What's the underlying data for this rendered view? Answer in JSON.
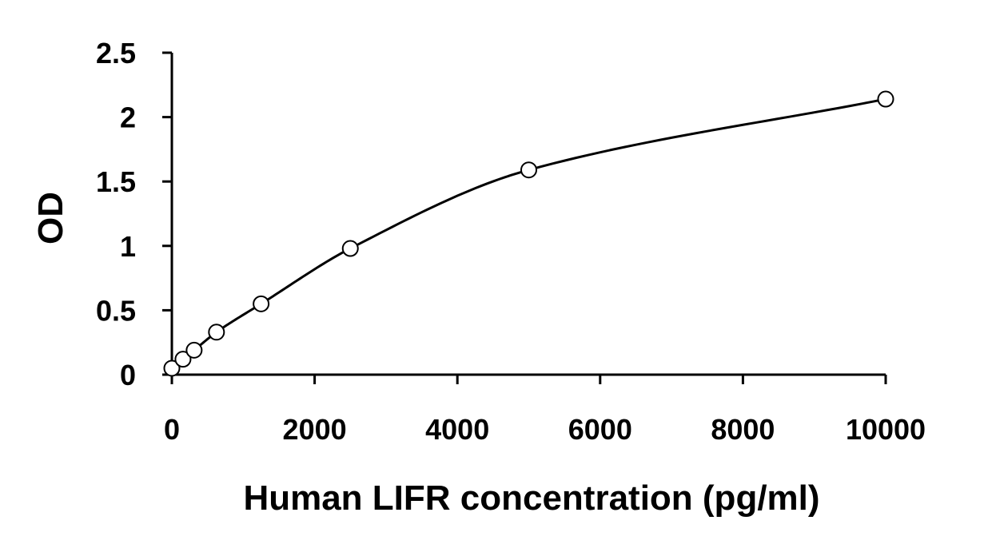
{
  "chart_data": {
    "type": "scatter",
    "title": "",
    "xlabel": "Human LIFR concentration (pg/ml)",
    "ylabel": "OD",
    "xlim": [
      0,
      10000
    ],
    "ylim": [
      0,
      2.5
    ],
    "x_ticks": [
      0,
      2000,
      4000,
      6000,
      8000,
      10000
    ],
    "y_ticks": [
      0,
      0.5,
      1,
      1.5,
      2,
      2.5
    ],
    "x_tick_labels": [
      "0",
      "2000",
      "4000",
      "6000",
      "8000",
      "10000"
    ],
    "y_tick_labels": [
      "0",
      "0.5",
      "1",
      "1.5",
      "2",
      "2.5"
    ],
    "grid": false,
    "legend": "none",
    "series": [
      {
        "x": [
          0,
          156,
          312,
          625,
          1250,
          2500,
          5000,
          10000
        ],
        "y": [
          0.05,
          0.12,
          0.19,
          0.33,
          0.55,
          0.98,
          1.59,
          2.14
        ],
        "marker": "open-circle",
        "fit_line": true
      }
    ]
  }
}
